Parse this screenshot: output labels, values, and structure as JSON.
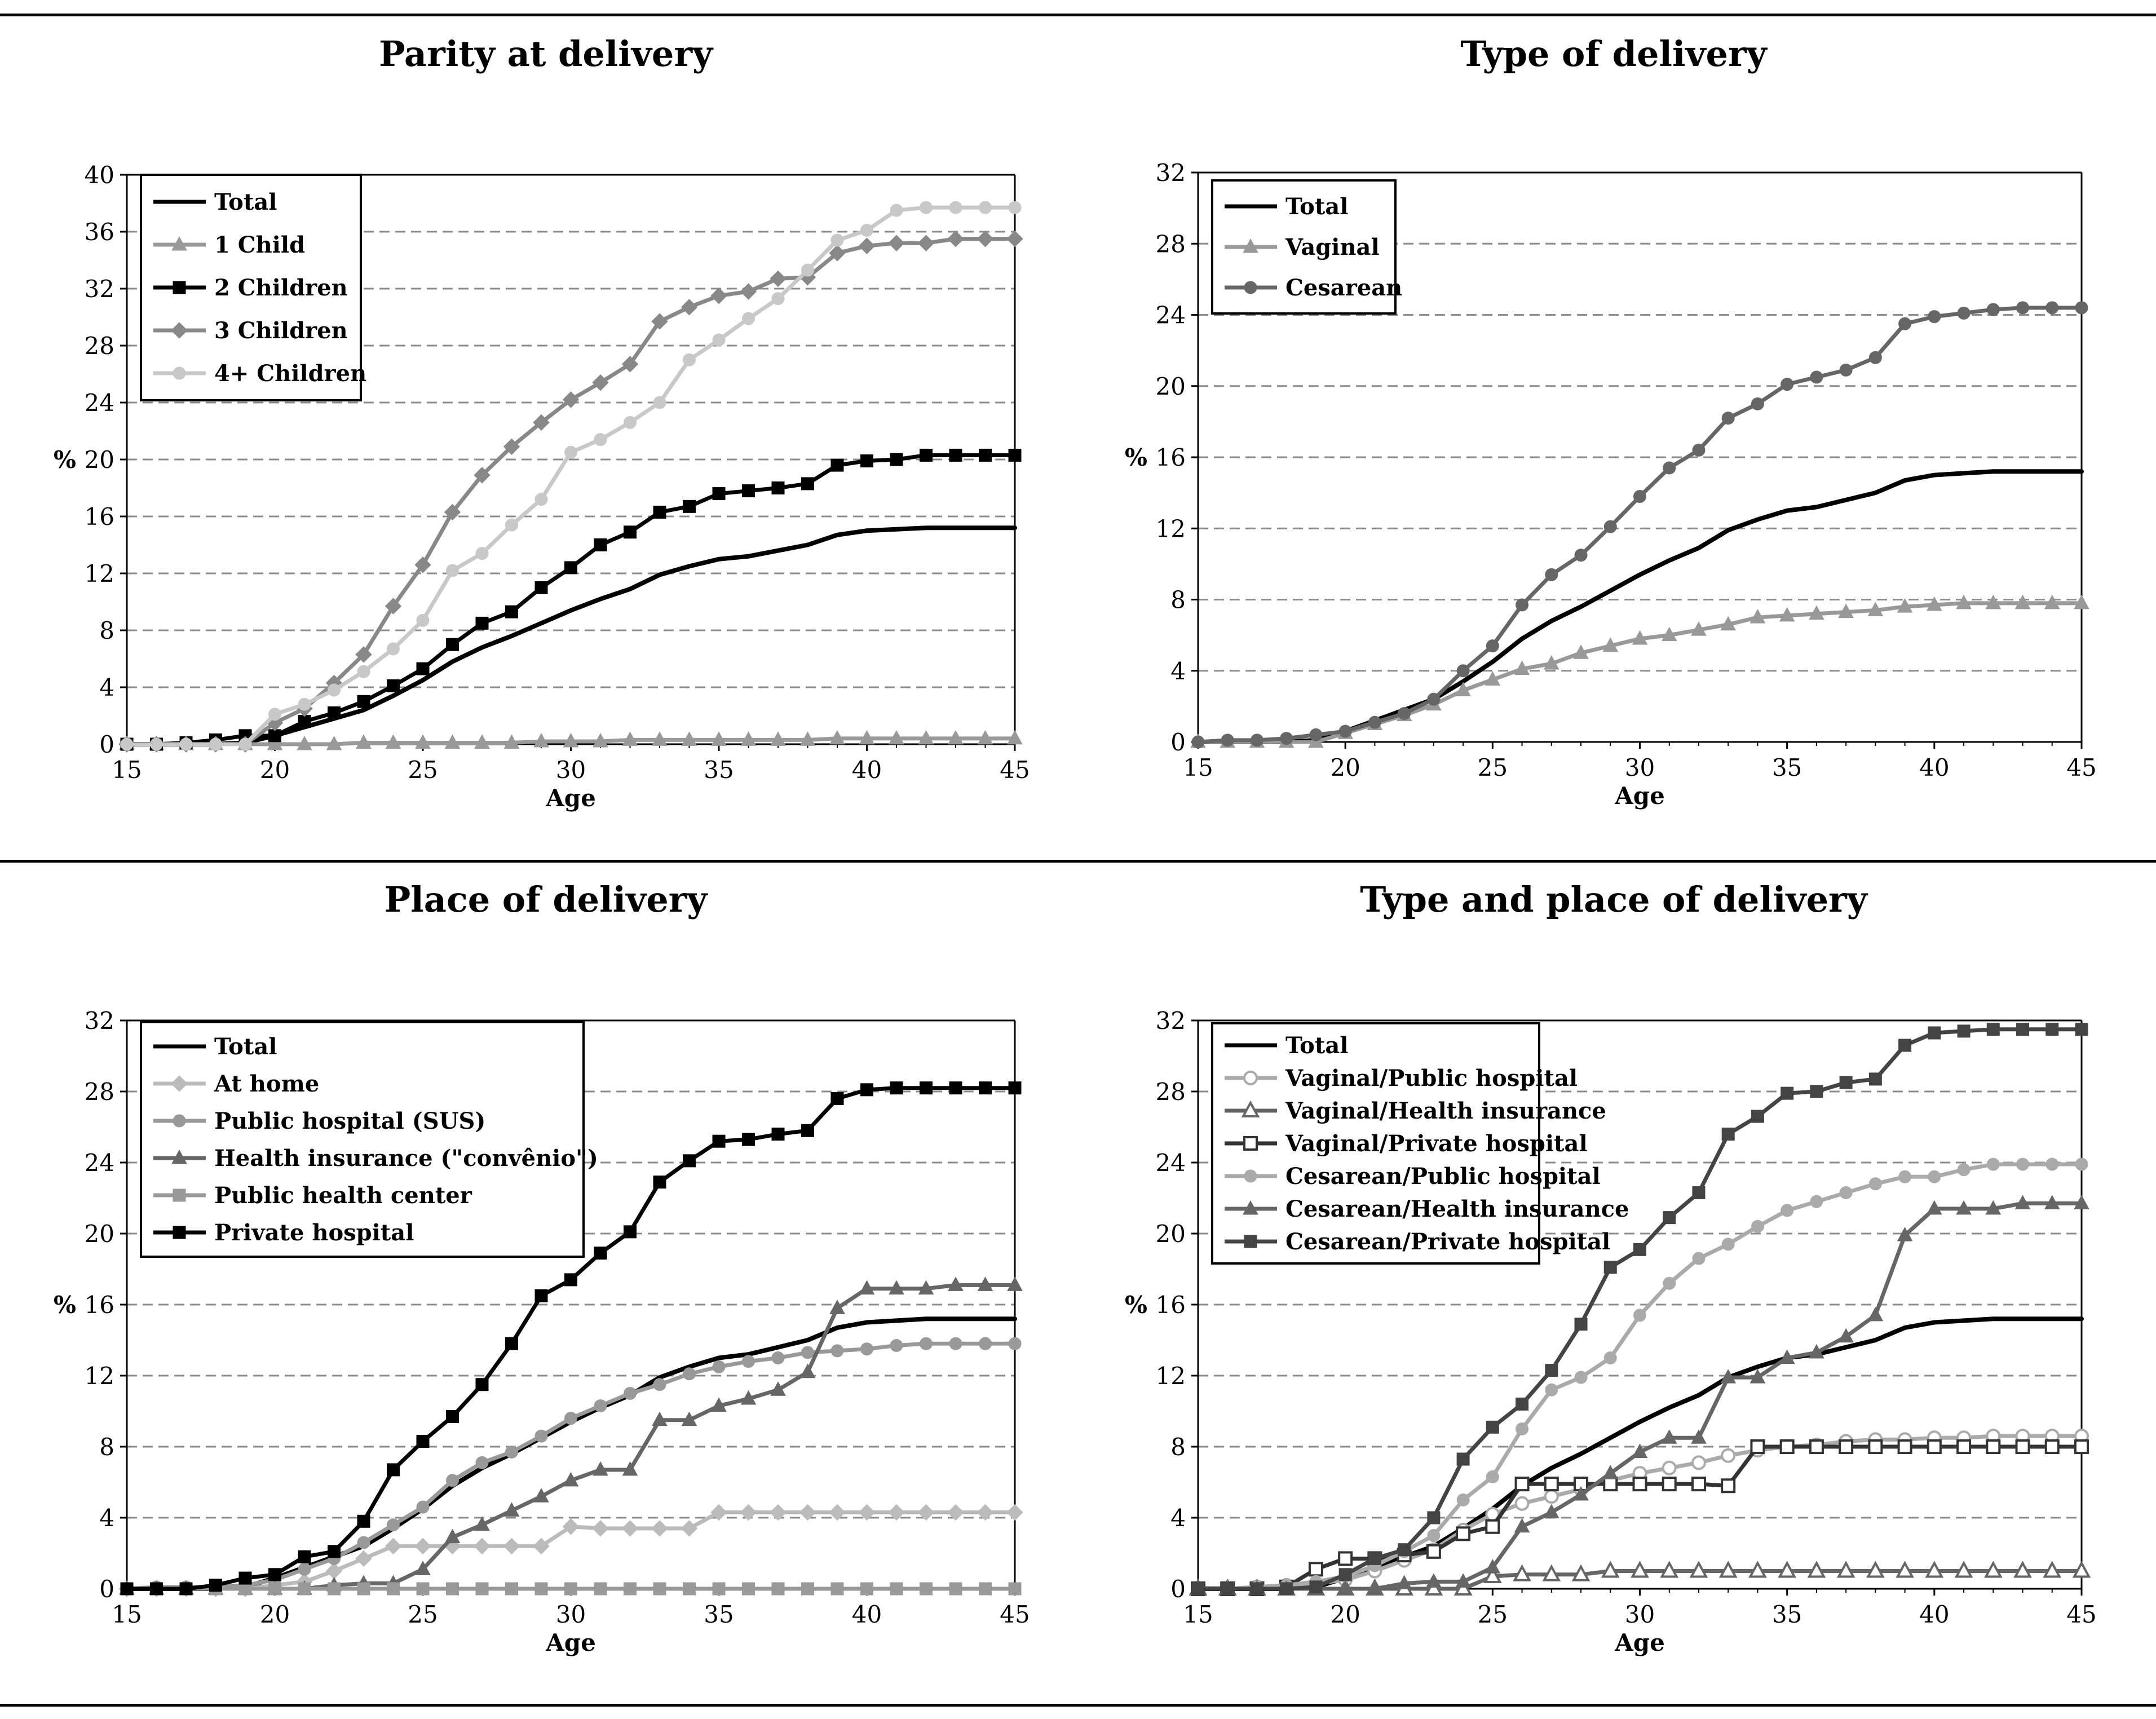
{
  "charts": [
    {
      "title": "Parity at delivery",
      "type": "line",
      "xlabel": "Age",
      "ylabel": "%",
      "xlim": [
        15,
        45
      ],
      "ylim": [
        0,
        40
      ],
      "xticks": [
        15,
        20,
        25,
        30,
        35,
        40,
        45
      ],
      "yticks": [
        0,
        4,
        8,
        12,
        16,
        20,
        24,
        28,
        32,
        36,
        40
      ],
      "legend_position": "top-left",
      "x": [
        15,
        16,
        17,
        18,
        19,
        20,
        21,
        22,
        23,
        24,
        25,
        26,
        27,
        28,
        29,
        30,
        31,
        32,
        33,
        34,
        35,
        36,
        37,
        38,
        39,
        40,
        41,
        42,
        43,
        44,
        45
      ],
      "series": [
        {
          "name": "Total",
          "color": "#000000",
          "marker": "none",
          "values": [
            0,
            0,
            0,
            0,
            0.1,
            0.6,
            1.2,
            1.8,
            2.4,
            3.4,
            4.5,
            5.8,
            6.8,
            7.6,
            8.5,
            9.4,
            10.2,
            10.9,
            11.9,
            12.5,
            13.0,
            13.2,
            13.6,
            14.0,
            14.7,
            15.0,
            15.1,
            15.2,
            15.2,
            15.2,
            15.2
          ]
        },
        {
          "name": "1 Child",
          "color": "#999999",
          "marker": "triangle",
          "values": [
            0,
            0,
            0,
            0,
            0,
            0,
            0,
            0,
            0.1,
            0.1,
            0.1,
            0.1,
            0.1,
            0.1,
            0.2,
            0.2,
            0.2,
            0.3,
            0.3,
            0.3,
            0.3,
            0.3,
            0.3,
            0.3,
            0.4,
            0.4,
            0.4,
            0.4,
            0.4,
            0.4,
            0.4
          ]
        },
        {
          "name": "2 Children",
          "color": "#000000",
          "marker": "square",
          "values": [
            0,
            0,
            0.1,
            0.3,
            0.6,
            0.6,
            1.6,
            2.2,
            3.0,
            4.1,
            5.3,
            7.0,
            8.5,
            9.3,
            11.0,
            12.4,
            14.0,
            14.9,
            16.3,
            16.7,
            17.6,
            17.8,
            18.0,
            18.3,
            19.6,
            19.9,
            20.0,
            20.3,
            20.3,
            20.3,
            20.3
          ]
        },
        {
          "name": "3 Children",
          "color": "#888888",
          "marker": "diamond",
          "values": [
            0,
            0,
            0,
            0,
            0,
            1.5,
            2.5,
            4.3,
            6.3,
            9.7,
            12.6,
            16.3,
            18.9,
            20.9,
            22.6,
            24.2,
            25.4,
            26.7,
            29.7,
            30.7,
            31.5,
            31.8,
            32.7,
            32.8,
            34.5,
            35.0,
            35.2,
            35.2,
            35.5,
            35.5,
            35.5
          ]
        },
        {
          "name": "4+ Children",
          "color": "#c8c8c8",
          "marker": "circle",
          "values": [
            0,
            0,
            0,
            0,
            0,
            2.1,
            2.8,
            3.8,
            5.1,
            6.7,
            8.7,
            12.2,
            13.4,
            15.4,
            17.2,
            20.5,
            21.4,
            22.6,
            24.0,
            27.0,
            28.4,
            29.9,
            31.3,
            33.3,
            35.4,
            36.1,
            37.5,
            37.7,
            37.7,
            37.7,
            37.7
          ]
        }
      ]
    },
    {
      "title": "Type of delivery",
      "type": "line",
      "xlabel": "Age",
      "ylabel": "%",
      "xlim": [
        15,
        45
      ],
      "ylim": [
        0,
        32
      ],
      "xticks": [
        15,
        20,
        25,
        30,
        35,
        40,
        45
      ],
      "yticks": [
        0,
        4,
        8,
        12,
        16,
        20,
        24,
        28,
        32
      ],
      "legend_position": "top-left",
      "x": [
        15,
        16,
        17,
        18,
        19,
        20,
        21,
        22,
        23,
        24,
        25,
        26,
        27,
        28,
        29,
        30,
        31,
        32,
        33,
        34,
        35,
        36,
        37,
        38,
        39,
        40,
        41,
        42,
        43,
        44,
        45
      ],
      "series": [
        {
          "name": "Total",
          "color": "#000000",
          "marker": "none",
          "values": [
            0,
            0,
            0,
            0,
            0.1,
            0.6,
            1.2,
            1.8,
            2.4,
            3.4,
            4.5,
            5.8,
            6.8,
            7.6,
            8.5,
            9.4,
            10.2,
            10.9,
            11.9,
            12.5,
            13.0,
            13.2,
            13.6,
            14.0,
            14.7,
            15.0,
            15.1,
            15.2,
            15.2,
            15.2,
            15.2
          ]
        },
        {
          "name": "Vaginal",
          "color": "#999999",
          "marker": "triangle",
          "values": [
            0,
            0,
            0,
            0,
            0,
            0.5,
            1.0,
            1.5,
            2.1,
            2.9,
            3.5,
            4.1,
            4.4,
            5.0,
            5.4,
            5.8,
            6.0,
            6.3,
            6.6,
            7.0,
            7.1,
            7.2,
            7.3,
            7.4,
            7.6,
            7.7,
            7.8,
            7.8,
            7.8,
            7.8,
            7.8
          ]
        },
        {
          "name": "Cesarean",
          "color": "#666666",
          "marker": "circle",
          "values": [
            0,
            0.1,
            0.1,
            0.2,
            0.4,
            0.6,
            1.1,
            1.6,
            2.4,
            4.0,
            5.4,
            7.7,
            9.4,
            10.5,
            12.1,
            13.8,
            15.4,
            16.4,
            18.2,
            19.0,
            20.1,
            20.5,
            20.9,
            21.6,
            23.5,
            23.9,
            24.1,
            24.3,
            24.4,
            24.4,
            24.4
          ]
        }
      ]
    },
    {
      "title": "Place of delivery",
      "type": "line",
      "xlabel": "Age",
      "ylabel": "%",
      "xlim": [
        15,
        45
      ],
      "ylim": [
        0,
        32
      ],
      "xticks": [
        15,
        20,
        25,
        30,
        35,
        40,
        45
      ],
      "yticks": [
        0,
        4,
        8,
        12,
        16,
        20,
        24,
        28,
        32
      ],
      "legend_position": "top-left",
      "x": [
        15,
        16,
        17,
        18,
        19,
        20,
        21,
        22,
        23,
        24,
        25,
        26,
        27,
        28,
        29,
        30,
        31,
        32,
        33,
        34,
        35,
        36,
        37,
        38,
        39,
        40,
        41,
        42,
        43,
        44,
        45
      ],
      "series": [
        {
          "name": "Total",
          "color": "#000000",
          "marker": "none",
          "values": [
            0,
            0,
            0,
            0,
            0.1,
            0.6,
            1.2,
            1.8,
            2.4,
            3.4,
            4.5,
            5.8,
            6.8,
            7.6,
            8.5,
            9.4,
            10.2,
            10.9,
            11.9,
            12.5,
            13.0,
            13.2,
            13.6,
            14.0,
            14.7,
            15.0,
            15.1,
            15.2,
            15.2,
            15.2,
            15.2
          ]
        },
        {
          "name": "At home",
          "color": "#bbbbbb",
          "marker": "diamond",
          "values": [
            0,
            0,
            0,
            0,
            0,
            0.2,
            0.4,
            1.0,
            1.7,
            2.4,
            2.4,
            2.4,
            2.4,
            2.4,
            2.4,
            3.5,
            3.4,
            3.4,
            3.4,
            3.4,
            4.3,
            4.3,
            4.3,
            4.3,
            4.3,
            4.3,
            4.3,
            4.3,
            4.3,
            4.3,
            4.3
          ]
        },
        {
          "name": "Public hospital (SUS)",
          "color": "#999999",
          "marker": "circle",
          "values": [
            0,
            0.1,
            0.1,
            0.1,
            0.2,
            0.5,
            1.1,
            1.7,
            2.6,
            3.6,
            4.6,
            6.1,
            7.1,
            7.7,
            8.6,
            9.6,
            10.3,
            11.0,
            11.5,
            12.1,
            12.5,
            12.8,
            13.0,
            13.3,
            13.4,
            13.5,
            13.7,
            13.8,
            13.8,
            13.8,
            13.8
          ]
        },
        {
          "name": "Health insurance (\"convênio\")",
          "color": "#666666",
          "marker": "triangle",
          "values": [
            0,
            0,
            0,
            0,
            0,
            0,
            0,
            0.2,
            0.3,
            0.3,
            1.1,
            2.9,
            3.6,
            4.4,
            5.2,
            6.1,
            6.7,
            6.7,
            9.5,
            9.5,
            10.3,
            10.7,
            11.2,
            12.2,
            15.8,
            16.9,
            16.9,
            16.9,
            17.1,
            17.1,
            17.1
          ]
        },
        {
          "name": "Public health center",
          "color": "#999999",
          "marker": "square",
          "values": [
            0,
            0,
            0,
            0,
            0,
            0,
            0,
            0,
            0,
            0,
            0,
            0,
            0,
            0,
            0,
            0,
            0,
            0,
            0,
            0,
            0,
            0,
            0,
            0,
            0,
            0,
            0,
            0,
            0,
            0,
            0
          ]
        },
        {
          "name": "Private hospital",
          "color": "#000000",
          "marker": "square",
          "values": [
            0,
            0,
            0,
            0.2,
            0.6,
            0.8,
            1.8,
            2.1,
            3.8,
            6.7,
            8.3,
            9.7,
            11.5,
            13.8,
            16.5,
            17.4,
            18.9,
            20.1,
            22.9,
            24.1,
            25.2,
            25.3,
            25.6,
            25.8,
            27.6,
            28.1,
            28.2,
            28.2,
            28.2,
            28.2,
            28.2
          ]
        }
      ]
    },
    {
      "title": "Type and place of delivery",
      "type": "line",
      "xlabel": "Age",
      "ylabel": "%",
      "xlim": [
        15,
        45
      ],
      "ylim": [
        0,
        32
      ],
      "xticks": [
        15,
        20,
        25,
        30,
        35,
        40,
        45
      ],
      "yticks": [
        0,
        4,
        8,
        12,
        16,
        20,
        24,
        28,
        32
      ],
      "legend_position": "top-left",
      "x": [
        15,
        16,
        17,
        18,
        19,
        20,
        21,
        22,
        23,
        24,
        25,
        26,
        27,
        28,
        29,
        30,
        31,
        32,
        33,
        34,
        35,
        36,
        37,
        38,
        39,
        40,
        41,
        42,
        43,
        44,
        45
      ],
      "series": [
        {
          "name": "Total",
          "color": "#000000",
          "marker": "none",
          "values": [
            0,
            0,
            0,
            0,
            0.1,
            0.6,
            1.2,
            1.8,
            2.4,
            3.4,
            4.5,
            5.8,
            6.8,
            7.6,
            8.5,
            9.4,
            10.2,
            10.9,
            11.9,
            12.5,
            13.0,
            13.2,
            13.6,
            14.0,
            14.7,
            15.0,
            15.1,
            15.2,
            15.2,
            15.2,
            15.2
          ]
        },
        {
          "name": "Vaginal/Public hospital",
          "color": "#aaaaaa",
          "marker": "circle-open",
          "values": [
            0,
            0,
            0.1,
            0.2,
            0.3,
            0.5,
            1.0,
            1.6,
            2.2,
            3.3,
            4.2,
            4.8,
            5.2,
            5.6,
            6.1,
            6.5,
            6.8,
            7.1,
            7.5,
            7.8,
            8.0,
            8.1,
            8.3,
            8.4,
            8.4,
            8.5,
            8.5,
            8.6,
            8.6,
            8.6,
            8.6
          ]
        },
        {
          "name": "Vaginal/Health insurance",
          "color": "#666666",
          "marker": "triangle-open",
          "values": [
            0,
            0,
            0,
            0,
            0,
            0,
            0,
            0,
            0,
            0,
            0.7,
            0.8,
            0.8,
            0.8,
            1.0,
            1.0,
            1.0,
            1.0,
            1.0,
            1.0,
            1.0,
            1.0,
            1.0,
            1.0,
            1.0,
            1.0,
            1.0,
            1.0,
            1.0,
            1.0,
            1.0
          ]
        },
        {
          "name": "Vaginal/Private hospital",
          "color": "#333333",
          "marker": "square-open",
          "values": [
            0,
            0,
            0,
            0.1,
            1.1,
            1.7,
            1.7,
            1.9,
            2.1,
            3.1,
            3.5,
            5.9,
            5.9,
            5.9,
            5.9,
            5.9,
            5.9,
            5.9,
            5.8,
            8.0,
            8.0,
            8.0,
            8.0,
            8.0,
            8.0,
            8.0,
            8.0,
            8.0,
            8.0,
            8.0,
            8.0
          ]
        },
        {
          "name": "Cesarean/Public hospital",
          "color": "#aaaaaa",
          "marker": "circle",
          "values": [
            0,
            0,
            0.1,
            0.2,
            0.4,
            0.7,
            1.3,
            2.1,
            3.0,
            5.0,
            6.3,
            9.0,
            11.2,
            11.9,
            13.0,
            15.4,
            17.2,
            18.6,
            19.4,
            20.4,
            21.3,
            21.8,
            22.3,
            22.8,
            23.2,
            23.2,
            23.6,
            23.9,
            23.9,
            23.9,
            23.9
          ]
        },
        {
          "name": "Cesarean/Health insurance",
          "color": "#666666",
          "marker": "triangle",
          "values": [
            0,
            0,
            0,
            0,
            0,
            0,
            0,
            0.3,
            0.4,
            0.4,
            1.2,
            3.5,
            4.3,
            5.3,
            6.5,
            7.7,
            8.5,
            8.5,
            11.9,
            11.9,
            13.0,
            13.3,
            14.2,
            15.4,
            19.9,
            21.4,
            21.4,
            21.4,
            21.7,
            21.7,
            21.7
          ]
        },
        {
          "name": "Cesarean/Private hospital",
          "color": "#444444",
          "marker": "square",
          "values": [
            0,
            0,
            0,
            0,
            0.1,
            0.8,
            1.7,
            2.2,
            4.0,
            7.3,
            9.1,
            10.4,
            12.3,
            14.9,
            18.1,
            19.1,
            20.9,
            22.3,
            25.6,
            26.6,
            27.9,
            28.0,
            28.5,
            28.7,
            30.6,
            31.3,
            31.4,
            31.5,
            31.5,
            31.5,
            31.5
          ]
        }
      ]
    }
  ]
}
